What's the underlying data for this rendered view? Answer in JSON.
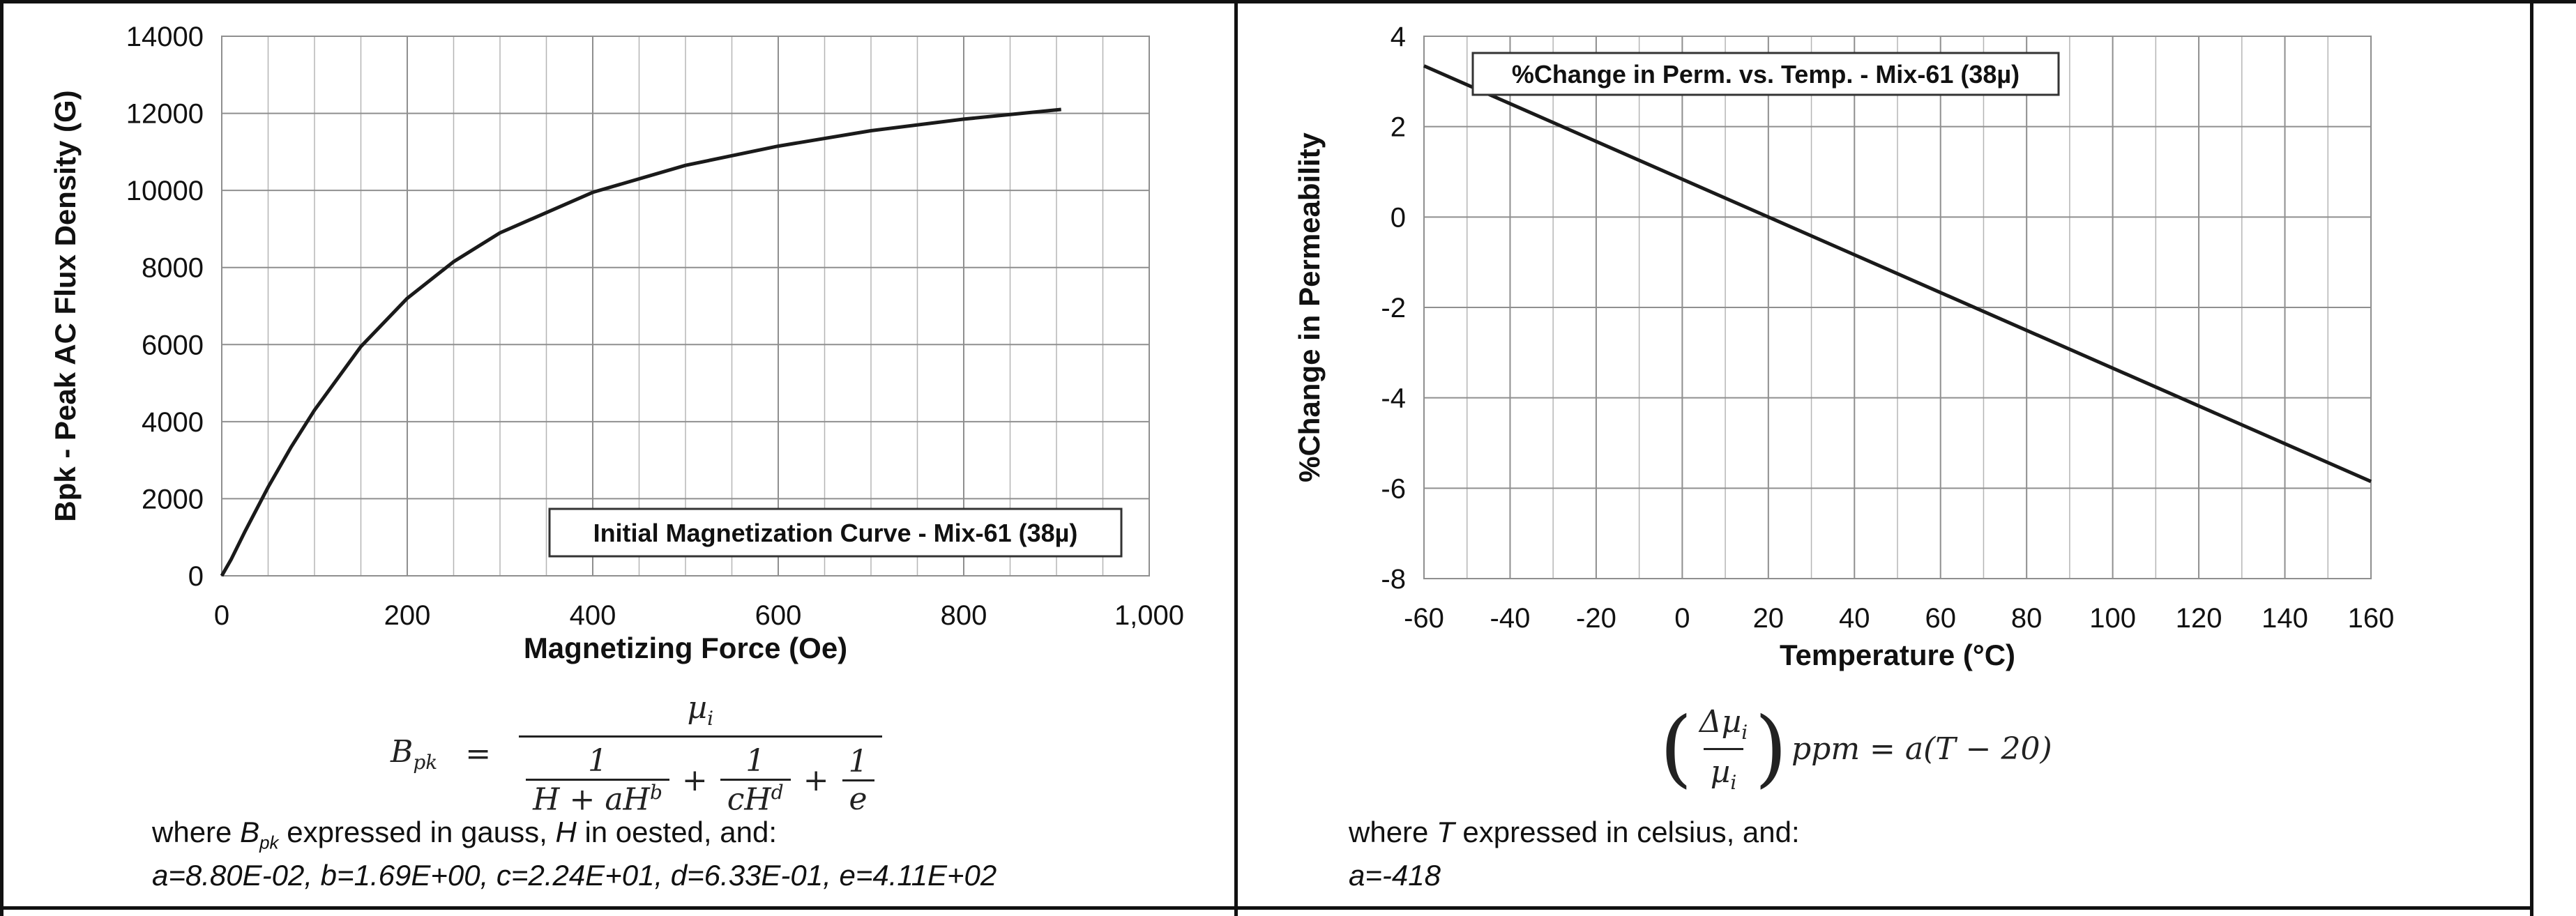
{
  "chart_data": [
    {
      "type": "line",
      "title": "Initial Magnetization Curve - Mix-61 (38µ)",
      "xlabel": "Magnetizing Force (Oe)",
      "ylabel": "Bpk - Peak AC Flux Density (G)",
      "xlim": [
        0,
        1000
      ],
      "ylim": [
        0,
        14000
      ],
      "x_ticks": [
        "0",
        "200",
        "400",
        "600",
        "800",
        "1,000"
      ],
      "y_ticks": [
        "0",
        "2000",
        "4000",
        "6000",
        "8000",
        "10000",
        "12000",
        "14000"
      ],
      "grid": true,
      "legend_position": "bottom-right",
      "x": [
        0,
        10,
        25,
        50,
        75,
        100,
        150,
        200,
        250,
        300,
        400,
        500,
        600,
        700,
        800,
        905
      ],
      "y": [
        0,
        420,
        1150,
        2300,
        3350,
        4300,
        5950,
        7200,
        8150,
        8900,
        9950,
        10650,
        11150,
        11550,
        11850,
        12100
      ],
      "line_color": "#1a1a1a"
    },
    {
      "type": "line",
      "title": "%Change in Perm. vs. Temp. - Mix-61 (38µ)",
      "xlabel": "Temperature (°C)",
      "ylabel": "%Change in Permeability",
      "xlim": [
        -60,
        160
      ],
      "ylim": [
        -8,
        4
      ],
      "x_ticks": [
        "-60",
        "-40",
        "-20",
        "0",
        "20",
        "40",
        "60",
        "80",
        "100",
        "120",
        "140",
        "160"
      ],
      "y_ticks": [
        "-8",
        "-6",
        "-4",
        "-2",
        "0",
        "2",
        "4"
      ],
      "grid": true,
      "legend_position": "top-left",
      "x": [
        -60,
        160
      ],
      "y": [
        3.344,
        -5.852
      ],
      "line_color": "#1a1a1a"
    }
  ],
  "left_formula": {
    "lhs": "B",
    "lhs_sub": "pk",
    "equals": "=",
    "numerator": "µ",
    "numerator_sub": "i",
    "one": "1",
    "term1_den": "H + aH",
    "term1_exp": "b",
    "plus": "+",
    "term2_den": "cH",
    "term2_exp": "d",
    "term3_den": "e"
  },
  "left_note": {
    "line1_pre": "where ",
    "line1_var": "B",
    "line1_var_sub": "pk",
    "line1_mid": " expressed in gauss, ",
    "line1_var2": "H",
    "line1_post": " in oested, and:",
    "line2": "a=8.80E-02,  b=1.69E+00,  c=2.24E+01,  d=6.33E-01,  e=4.11E+02"
  },
  "right_formula": {
    "delta_mu": "Δµ",
    "delta_sub": "i",
    "den_mu": "µ",
    "den_sub": "i",
    "rhs": "ppm = a(T − 20)"
  },
  "right_note": {
    "line1_pre": "where ",
    "line1_var": "T",
    "line1_post": " expressed in celsius, and:",
    "line2": "a=-418"
  }
}
